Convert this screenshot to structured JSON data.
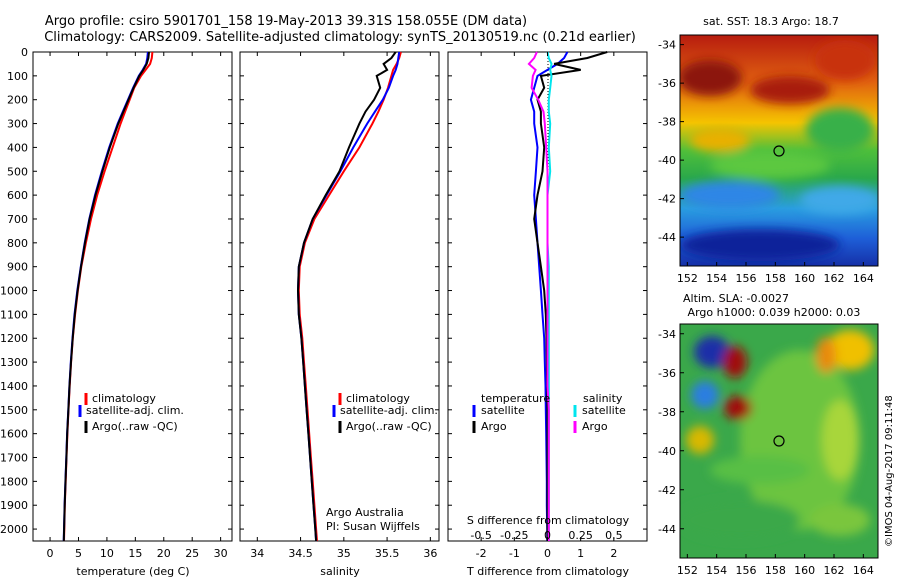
{
  "header": {
    "line1": "Argo profile: csiro 5901701_158 19-May-2013 39.31S 158.055E (DM data)",
    "line2": "Climatology: CARS2009. Satellite-adjusted climatology: synTS_20130519.nc (0.21d earlier)"
  },
  "colors": {
    "climatology": "#ff0000",
    "satellite": "#0000ff",
    "argo": "#000000",
    "salinity_sat": "#00e5ee",
    "salinity_argo": "#ff00ff"
  },
  "depth_ticks": [
    "0",
    "100",
    "200",
    "300",
    "400",
    "500",
    "600",
    "700",
    "800",
    "900",
    "1000",
    "1100",
    "1200",
    "1300",
    "1400",
    "1500",
    "1600",
    "1700",
    "1800",
    "1900",
    "2000"
  ],
  "chart_data": [
    {
      "type": "line",
      "panel": "temperature",
      "xlabel": "temperature (deg C)",
      "xticks": [
        "0",
        "5",
        "10",
        "15",
        "20",
        "25",
        "30"
      ],
      "xlim": [
        -3,
        32
      ],
      "ylim": [
        2050,
        0
      ],
      "depth": [
        0,
        25,
        50,
        75,
        100,
        150,
        200,
        250,
        300,
        400,
        500,
        600,
        700,
        800,
        900,
        1000,
        1100,
        1200,
        1300,
        1400,
        1500,
        1600,
        1700,
        1800,
        1900,
        2000,
        2050
      ],
      "series": [
        {
          "name": "climatology",
          "color": "#ff0000",
          "values": [
            18.0,
            17.9,
            17.6,
            16.8,
            16.0,
            14.8,
            14.0,
            13.2,
            12.4,
            11.0,
            9.6,
            8.3,
            7.2,
            6.3,
            5.5,
            4.9,
            4.4,
            4.0,
            3.7,
            3.45,
            3.25,
            3.05,
            2.9,
            2.75,
            2.6,
            2.5,
            2.45
          ]
        },
        {
          "name": "satellite-adj. clim.",
          "color": "#0000ff",
          "values": [
            17.2,
            17.1,
            16.9,
            16.3,
            15.6,
            14.6,
            13.7,
            12.8,
            11.9,
            10.4,
            9.1,
            7.9,
            6.9,
            6.1,
            5.4,
            4.8,
            4.3,
            3.95,
            3.65,
            3.4,
            3.2,
            3.0,
            2.85,
            2.7,
            2.55,
            2.45,
            2.4
          ]
        },
        {
          "name": "Argo(..raw -QC)",
          "color": "#000000",
          "values": [
            17.4,
            17.3,
            17.0,
            16.4,
            15.7,
            14.7,
            13.8,
            12.9,
            12.0,
            10.5,
            9.2,
            8.0,
            6.95,
            6.15,
            5.45,
            4.85,
            4.35,
            3.98,
            3.68,
            3.42,
            3.22,
            3.02,
            2.87,
            2.72,
            2.57,
            2.47,
            2.42
          ]
        }
      ],
      "legend": [
        "climatology",
        "satellite-adj. clim.",
        "Argo(..raw -QC)"
      ]
    },
    {
      "type": "line",
      "panel": "salinity",
      "xlabel": "salinity",
      "xticks": [
        "34",
        "34.5",
        "35",
        "35.5",
        "36"
      ],
      "xlim": [
        33.8,
        36.1
      ],
      "ylim": [
        2050,
        0
      ],
      "depth": [
        0,
        25,
        50,
        75,
        100,
        150,
        200,
        250,
        300,
        400,
        500,
        600,
        700,
        800,
        900,
        1000,
        1100,
        1200,
        1300,
        1400,
        1500,
        1600,
        1700,
        1800,
        1900,
        2000,
        2050
      ],
      "series": [
        {
          "name": "climatology",
          "color": "#ff0000",
          "values": [
            35.66,
            35.64,
            35.61,
            35.57,
            35.55,
            35.51,
            35.46,
            35.4,
            35.33,
            35.18,
            35.0,
            34.83,
            34.66,
            34.55,
            34.49,
            34.48,
            34.49,
            34.52,
            34.54,
            34.56,
            34.58,
            34.6,
            34.62,
            34.64,
            34.66,
            34.68,
            34.69
          ]
        },
        {
          "name": "satellite-adj. clim.",
          "color": "#0000ff",
          "values": [
            35.64,
            35.63,
            35.62,
            35.6,
            35.57,
            35.52,
            35.45,
            35.36,
            35.27,
            35.11,
            34.96,
            34.8,
            34.64,
            34.54,
            34.48,
            34.47,
            34.48,
            34.51,
            34.53,
            34.55,
            34.57,
            34.59,
            34.61,
            34.63,
            34.65,
            34.67,
            34.68
          ]
        },
        {
          "name": "Argo(..raw -QC)",
          "color": "#000000",
          "values": [
            35.6,
            35.55,
            35.46,
            35.5,
            35.38,
            35.42,
            35.35,
            35.25,
            35.18,
            35.06,
            34.95,
            34.79,
            34.64,
            34.54,
            34.48,
            34.47,
            34.48,
            34.51,
            34.53,
            34.55,
            34.57,
            34.59,
            34.61,
            34.63,
            34.65,
            34.67,
            34.68
          ]
        }
      ],
      "legend": [
        "climatology",
        "satellite-adj. clim.",
        "Argo(..raw -QC)"
      ],
      "annotation": [
        "Argo Australia",
        "PI: Susan Wijffels"
      ]
    },
    {
      "type": "line",
      "panel": "difference",
      "xlabel": "T difference from climatology",
      "xlabel_top": "S difference from climatology",
      "xticks": [
        "-2",
        "-1",
        "0",
        "1",
        "2"
      ],
      "xticks_top": [
        "-0.5",
        "-0.25",
        "0",
        "0.25",
        "0.5"
      ],
      "xlim": [
        -3,
        3
      ],
      "ylim": [
        2050,
        0
      ],
      "depth": [
        0,
        25,
        50,
        75,
        100,
        150,
        200,
        250,
        300,
        400,
        500,
        600,
        700,
        800,
        900,
        1000,
        1100,
        1200,
        1300,
        1400,
        1500,
        1600,
        1700,
        1800,
        1900,
        2000,
        2050
      ],
      "series": [
        {
          "name": "temperature satellite",
          "color": "#0000ff",
          "values": [
            0.6,
            0.5,
            0.3,
            0.0,
            -0.3,
            -0.4,
            -0.5,
            -0.4,
            -0.4,
            -0.3,
            -0.35,
            -0.4,
            -0.35,
            -0.3,
            -0.25,
            -0.2,
            -0.15,
            -0.1,
            -0.08,
            -0.06,
            -0.05,
            -0.04,
            -0.03,
            -0.02,
            -0.02,
            -0.01,
            -0.01
          ]
        },
        {
          "name": "temperature Argo",
          "color": "#000000",
          "values": [
            1.8,
            1.2,
            0.2,
            1.0,
            -0.2,
            -0.1,
            -0.3,
            -0.2,
            -0.2,
            -0.1,
            -0.15,
            -0.3,
            -0.4,
            -0.3,
            -0.2,
            -0.1,
            -0.05,
            -0.03,
            -0.02,
            -0.01,
            0.0,
            0.0,
            0.0,
            0.0,
            0.0,
            0.0,
            0.0
          ]
        },
        {
          "name": "salinity satellite",
          "color": "#00e5ee",
          "values": [
            0.0,
            0.01,
            0.03,
            0.02,
            0.03,
            0.02,
            0.01,
            0.01,
            0.02,
            0.01,
            0.02,
            0.0,
            0.0,
            0.0,
            0.01,
            0.01,
            0.01,
            0.01,
            0.01,
            0.01,
            0.01,
            0.01,
            0.01,
            0.01,
            0.01,
            0.01,
            0.01
          ]
        },
        {
          "name": "salinity Argo",
          "color": "#ff00ff",
          "values": [
            -0.08,
            -0.1,
            -0.14,
            -0.09,
            -0.11,
            -0.12,
            -0.07,
            -0.03,
            -0.02,
            -0.01,
            0.0,
            0.0,
            0.0,
            0.0,
            0.0,
            0.0,
            0.0,
            0.0,
            0.0,
            0.0,
            0.01,
            0.01,
            0.01,
            0.01,
            0.01,
            0.01,
            0.01
          ]
        }
      ],
      "legend": {
        "temperature": [
          "satellite",
          "Argo"
        ],
        "salinity": [
          "satellite",
          "Argo"
        ]
      },
      "legend_headers": [
        "temperature",
        "salinity"
      ]
    },
    {
      "type": "heatmap",
      "panel": "sst_map",
      "title": "sat. SST: 18.3  Argo: 18.7",
      "xticks": [
        "152",
        "154",
        "156",
        "158",
        "160",
        "162",
        "164"
      ],
      "yticks": [
        "-34",
        "-36",
        "-38",
        "-40",
        "-42",
        "-44"
      ],
      "xlim": [
        151.5,
        165
      ],
      "ylim": [
        -45.5,
        -33.5
      ],
      "marker": {
        "lon": 158.055,
        "lat": -39.31
      }
    },
    {
      "type": "heatmap",
      "panel": "sla_map",
      "title_line1": "Altim. SLA: -0.0027",
      "title_line2": "Argo h1000: 0.039 h2000: 0.03",
      "xticks": [
        "152",
        "154",
        "156",
        "158",
        "160",
        "162",
        "164"
      ],
      "yticks": [
        "-34",
        "-36",
        "-38",
        "-40",
        "-42",
        "-44"
      ],
      "xlim": [
        151.5,
        165
      ],
      "ylim": [
        -45.5,
        -33.5
      ],
      "marker": {
        "lon": 158.055,
        "lat": -39.31
      }
    }
  ],
  "footer_credit": "©IMOS 04-Aug-2017 09:11:48"
}
